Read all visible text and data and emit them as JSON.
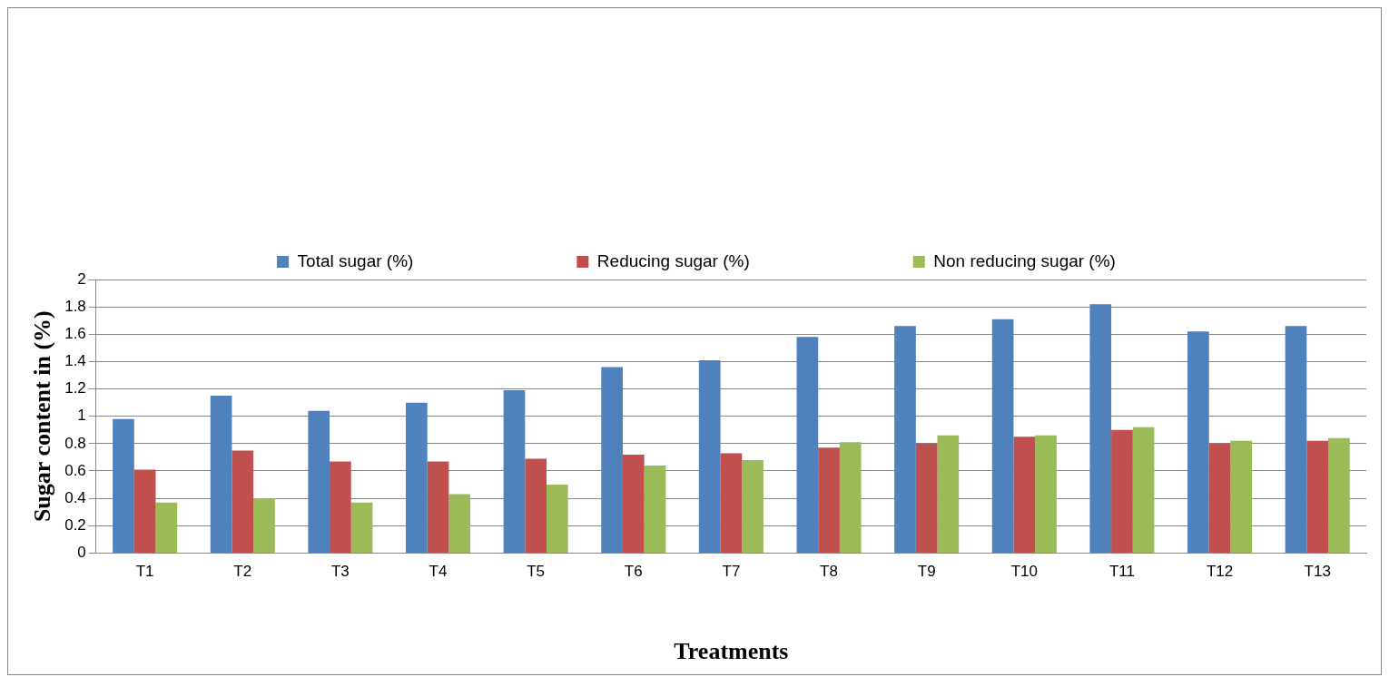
{
  "chart_data": {
    "type": "bar",
    "xlabel": "Treatments",
    "ylabel": "Sugar content in (%)",
    "categories": [
      "T1",
      "T2",
      "T3",
      "T4",
      "T5",
      "T6",
      "T7",
      "T8",
      "T9",
      "T10",
      "T11",
      "T12",
      "T13"
    ],
    "series": [
      {
        "name": "Total sugar (%)",
        "color": "#4f81bd",
        "values": [
          0.98,
          1.15,
          1.04,
          1.1,
          1.19,
          1.36,
          1.41,
          1.58,
          1.66,
          1.71,
          1.82,
          1.62,
          1.66
        ]
      },
      {
        "name": "Reducing sugar (%)",
        "color": "#c0504d",
        "values": [
          0.61,
          0.75,
          0.67,
          0.67,
          0.69,
          0.72,
          0.73,
          0.77,
          0.8,
          0.85,
          0.9,
          0.8,
          0.82
        ]
      },
      {
        "name": "Non reducing sugar (%)",
        "color": "#9bbb59",
        "values": [
          0.37,
          0.4,
          0.37,
          0.43,
          0.5,
          0.64,
          0.68,
          0.81,
          0.86,
          0.86,
          0.92,
          0.82,
          0.84
        ]
      }
    ],
    "ylim": [
      0,
      2
    ],
    "yticks": [
      0,
      0.2,
      0.4,
      0.6,
      0.8,
      1,
      1.2,
      1.4,
      1.6,
      1.8,
      2
    ],
    "grid": "y",
    "legend": "top"
  }
}
